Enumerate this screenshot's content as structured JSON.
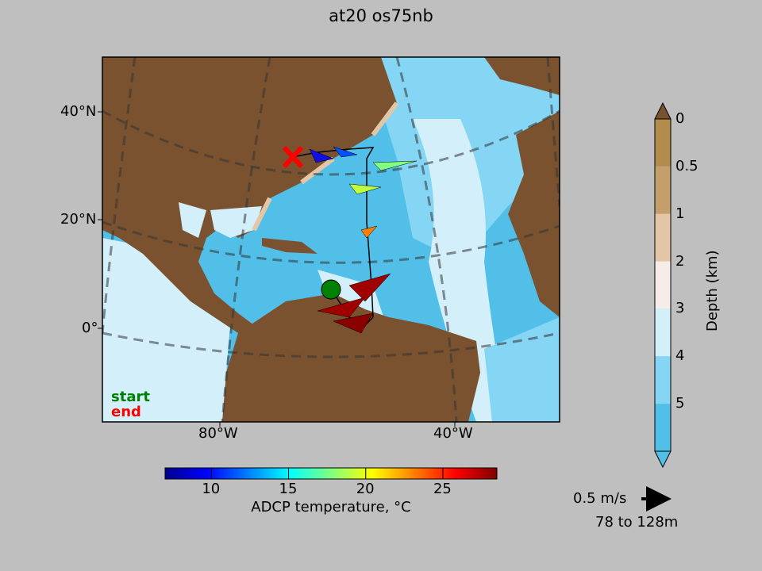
{
  "title": "at20 os75nb",
  "map": {
    "lat_ticks": [
      "40°N",
      "20°N",
      "0°"
    ],
    "lon_ticks": [
      "80°W",
      "40°W"
    ],
    "legend_start": "start",
    "legend_end": "end",
    "start_color": "#008000",
    "end_color": "#ff0000",
    "land_color": "#7a5230"
  },
  "depth_colorbar": {
    "label": "Depth (km)",
    "ticks": [
      "0",
      "0.5",
      "1",
      "2",
      "3",
      "4",
      "5"
    ],
    "colors": [
      "#b38b4d",
      "#c49f6c",
      "#e2c6a6",
      "#f6ecea",
      "#d2effa",
      "#85d6f5",
      "#52bfe8"
    ]
  },
  "temp_colorbar": {
    "label": "ADCP temperature, °C",
    "ticks": [
      "10",
      "15",
      "20",
      "25"
    ],
    "range": [
      7,
      28.5
    ]
  },
  "vector_scale": {
    "label": "0.5 m/s",
    "depth_range": "78 to 128m"
  }
}
